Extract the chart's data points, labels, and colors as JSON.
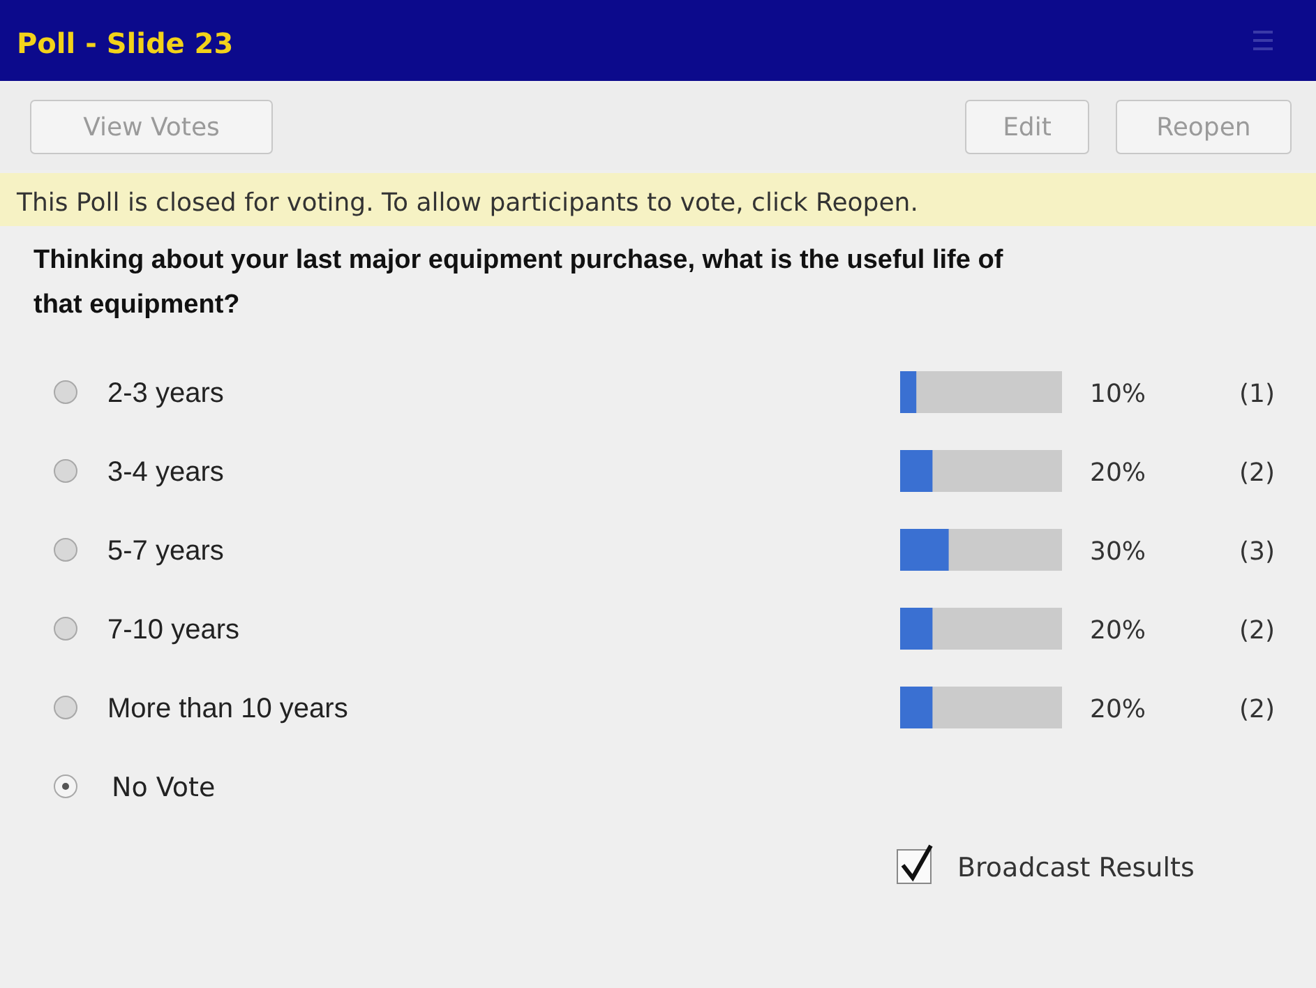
{
  "chart_data": {
    "type": "bar",
    "orientation": "horizontal",
    "title": "Poll - Slide 23",
    "subtitle": "Thinking about your last major equipment purchase, what is the useful life of that equipment?",
    "categories": [
      "2-3 years",
      "3-4 years",
      "5-7 years",
      "7-10 years",
      "More than 10 years"
    ],
    "values": [
      10,
      20,
      30,
      20,
      20
    ],
    "value_labels": [
      "10%",
      "20%",
      "30%",
      "20%",
      "20%"
    ],
    "color": "#3a70d2",
    "xlim": [
      0,
      100
    ],
    "annotations": [
      "View Votes",
      "Edit",
      "Reopen",
      "This Poll is closed for voting. To allow participants to vote, click Reopen.",
      "No Vote",
      "Broadcast Results",
      "(1)",
      "(2)",
      "(3)",
      "(2)",
      "(2)"
    ]
  }
}
